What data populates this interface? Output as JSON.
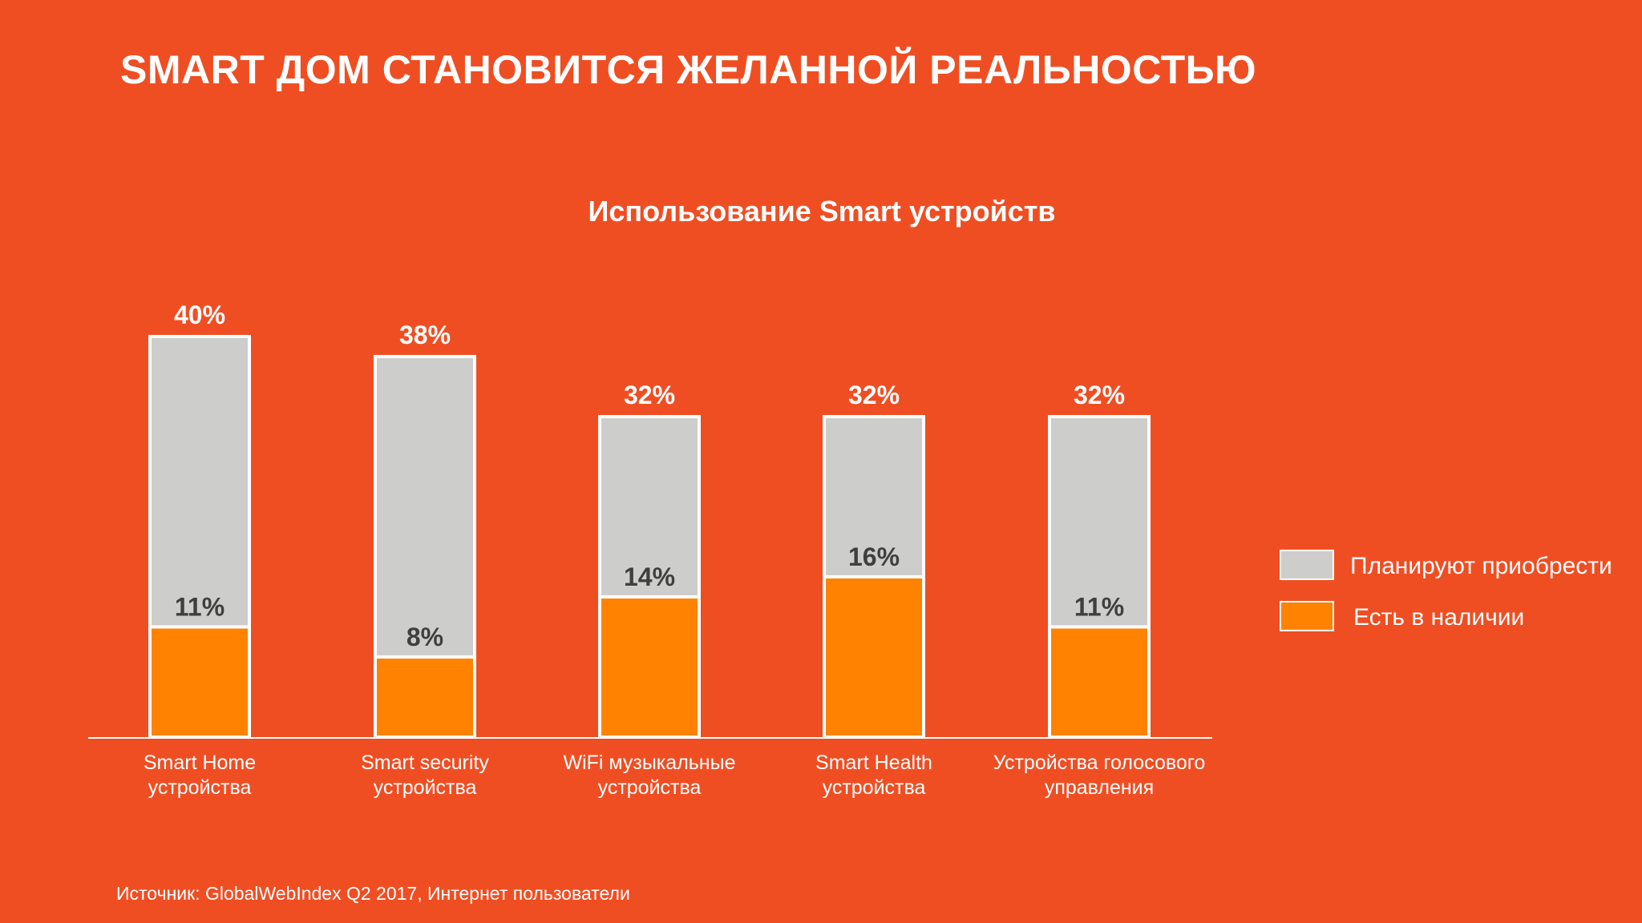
{
  "slide_title": "SMART ДОМ СТАНОВИТСЯ ЖЕЛАННОЙ РЕАЛЬНОСТЬЮ",
  "source": "Источник: GlobalWebIndex Q2 2017, Интернет пользователи",
  "colors": {
    "background": "#EF4E23",
    "planned": "#CDCDCB",
    "owned": "#FF8200",
    "bar_border": "#FFFFFF",
    "baseline": "#FFFFFF"
  },
  "chart_data": {
    "type": "bar",
    "stacked": true,
    "title": "Использование Smart устройств",
    "categories": [
      [
        "Smart Home",
        "устройства"
      ],
      [
        "Smart security",
        "устройства"
      ],
      [
        "WiFi музыкальные",
        "устройства"
      ],
      [
        "Smart Health",
        "устройства"
      ],
      [
        "Устройства голосового",
        "управления"
      ]
    ],
    "series": [
      {
        "name": "Есть в наличии",
        "values": [
          11,
          8,
          14,
          16,
          11
        ]
      },
      {
        "name": "Планируют приобрести",
        "values": [
          29,
          30,
          18,
          16,
          21
        ]
      }
    ],
    "totals": [
      40,
      38,
      32,
      32,
      32
    ],
    "total_labels": [
      "40%",
      "38%",
      "32%",
      "32%",
      "32%"
    ],
    "owned_labels": [
      "11%",
      "8%",
      "14%",
      "16%",
      "11%"
    ],
    "legend": [
      {
        "name": "Планируют приобрести",
        "color": "#CDCDCB"
      },
      {
        "name": "Есть в наличии",
        "color": "#FF8200"
      }
    ],
    "legend_position": "right",
    "ylim": [
      0,
      40
    ],
    "grid": false
  }
}
